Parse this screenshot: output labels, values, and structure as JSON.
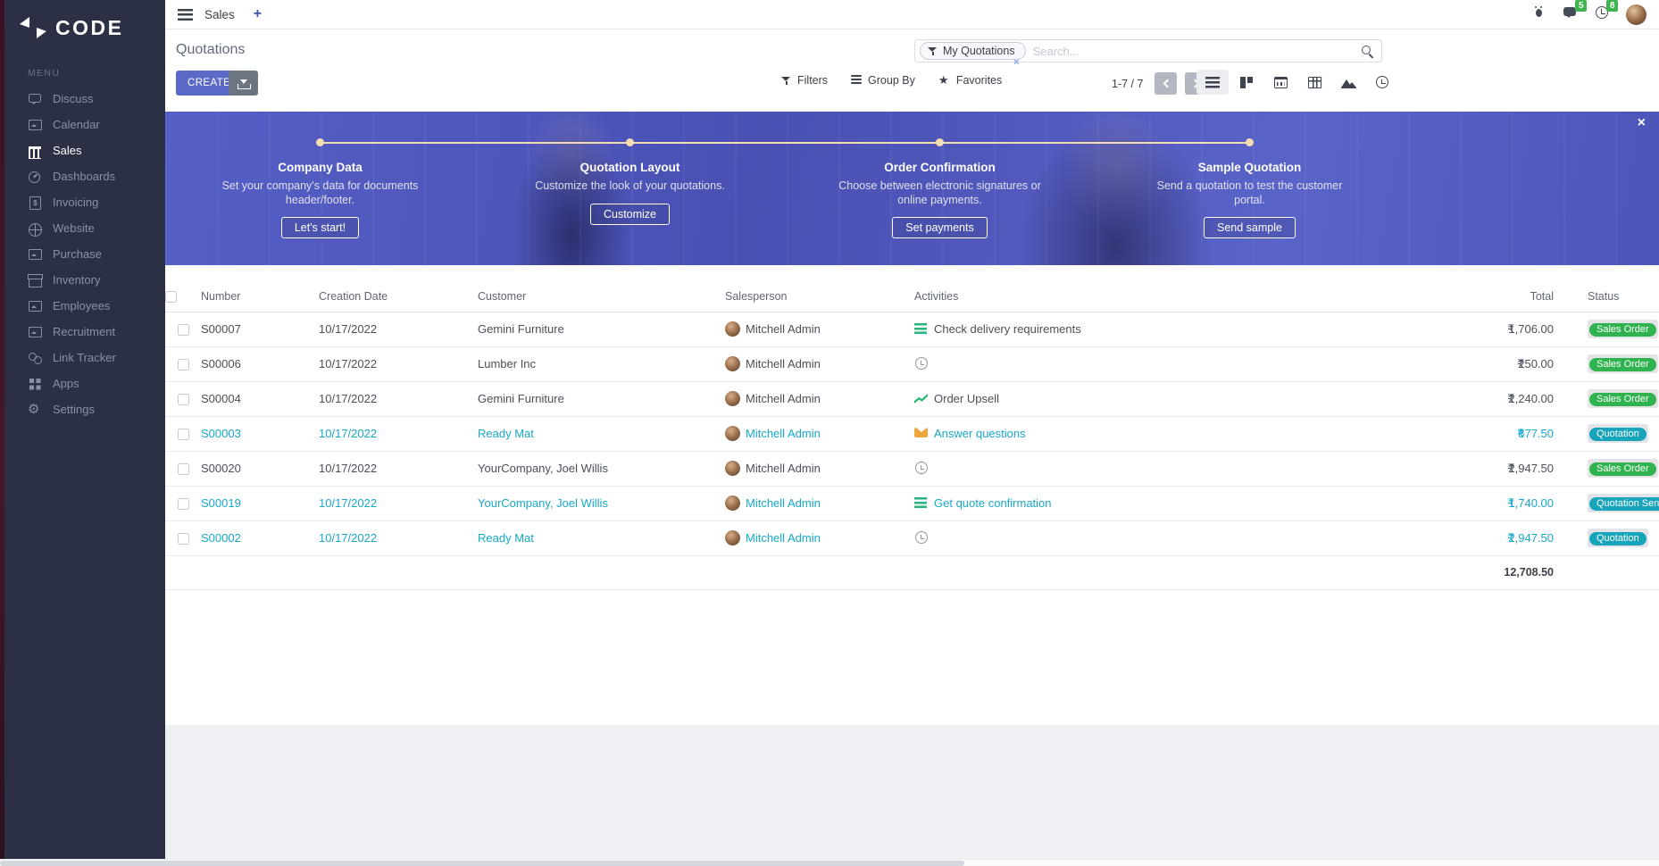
{
  "colors": {
    "accent": "#5b69c7",
    "sidebar_bg": "#2b3044",
    "status_green": "#2eb34f",
    "status_teal": "#18a4ba",
    "row_highlight": "#17a8c9",
    "banner_overlay": "#4d56b8",
    "timeline": "#f4ddb0",
    "notification_badge_green": "#3db54e"
  },
  "brand": {
    "logo_text": "CODE",
    "logo_icon": "code-arrows-icon"
  },
  "topbar": {
    "app_tab": "Sales",
    "new_tab_label": "+",
    "messages_badge": "5",
    "activities_badge": "8"
  },
  "sidebar": {
    "menu_label": "MENU",
    "items": [
      {
        "label": "Discuss",
        "icon": "chat-icon",
        "active": false
      },
      {
        "label": "Calendar",
        "icon": "image-icon",
        "active": false
      },
      {
        "label": "Sales",
        "icon": "shop-icon",
        "active": true
      },
      {
        "label": "Dashboards",
        "icon": "gauge-icon",
        "active": false
      },
      {
        "label": "Invoicing",
        "icon": "invoice-icon",
        "active": false
      },
      {
        "label": "Website",
        "icon": "globe-icon",
        "active": false
      },
      {
        "label": "Purchase",
        "icon": "image-icon",
        "active": false
      },
      {
        "label": "Inventory",
        "icon": "box-icon",
        "active": false
      },
      {
        "label": "Employees",
        "icon": "image-icon",
        "active": false
      },
      {
        "label": "Recruitment",
        "icon": "image-icon",
        "active": false
      },
      {
        "label": "Link Tracker",
        "icon": "link-icon",
        "active": false
      },
      {
        "label": "Apps",
        "icon": "apps-icon",
        "active": false
      },
      {
        "label": "Settings",
        "icon": "gear-icon",
        "active": false
      }
    ]
  },
  "control_panel": {
    "title": "Quotations",
    "facet_label": "My Quotations",
    "facet_remove": "×",
    "search_placeholder": "Search...",
    "create_label": "CREATE",
    "filters_label": "Filters",
    "group_by_label": "Group By",
    "favorites_label": "Favorites",
    "pager_text": "1-7 / 7"
  },
  "banner": {
    "close_label": "×",
    "steps": [
      {
        "title": "Company Data",
        "description": "Set your company's data for documents header/footer.",
        "button": "Let's start!"
      },
      {
        "title": "Quotation Layout",
        "description": "Customize the look of your quotations.",
        "button": "Customize"
      },
      {
        "title": "Order Confirmation",
        "description": "Choose between electronic signatures or online payments.",
        "button": "Set payments"
      },
      {
        "title": "Sample Quotation",
        "description": "Send a quotation to test the customer portal.",
        "button": "Send sample"
      }
    ]
  },
  "table": {
    "headers": [
      "Number",
      "Creation Date",
      "Customer",
      "Salesperson",
      "Activities",
      "Total",
      "Status"
    ],
    "currency_symbol": "₹",
    "rows": [
      {
        "number": "S00007",
        "date": "10/17/2022",
        "customer": "Gemini Furniture",
        "salesperson": "Mitchell Admin",
        "activity_icon": "list-icon",
        "activity_label": "Check delivery requirements",
        "total": "1,706.00",
        "status": "Sales Order",
        "status_color": "green",
        "highlighted": false
      },
      {
        "number": "S00006",
        "date": "10/17/2022",
        "customer": "Lumber Inc",
        "salesperson": "Mitchell Admin",
        "activity_icon": "clock-icon",
        "activity_label": "",
        "total": "250.00",
        "status": "Sales Order",
        "status_color": "green",
        "highlighted": false
      },
      {
        "number": "S00004",
        "date": "10/17/2022",
        "customer": "Gemini Furniture",
        "salesperson": "Mitchell Admin",
        "activity_icon": "chart-icon",
        "activity_label": "Order Upsell",
        "total": "2,240.00",
        "status": "Sales Order",
        "status_color": "green",
        "highlighted": false
      },
      {
        "number": "S00003",
        "date": "10/17/2022",
        "customer": "Ready Mat",
        "salesperson": "Mitchell Admin",
        "activity_icon": "mail-icon",
        "activity_label": "Answer questions",
        "total": "877.50",
        "status": "Quotation",
        "status_color": "teal",
        "highlighted": true
      },
      {
        "number": "S00020",
        "date": "10/17/2022",
        "customer": "YourCompany, Joel Willis",
        "salesperson": "Mitchell Admin",
        "activity_icon": "clock-icon",
        "activity_label": "",
        "total": "2,947.50",
        "status": "Sales Order",
        "status_color": "green",
        "highlighted": false
      },
      {
        "number": "S00019",
        "date": "10/17/2022",
        "customer": "YourCompany, Joel Willis",
        "salesperson": "Mitchell Admin",
        "activity_icon": "list-icon",
        "activity_label": "Get quote confirmation",
        "total": "1,740.00",
        "status": "Quotation Sent",
        "status_color": "teal",
        "highlighted": true
      },
      {
        "number": "S00002",
        "date": "10/17/2022",
        "customer": "Ready Mat",
        "salesperson": "Mitchell Admin",
        "activity_icon": "clock-icon",
        "activity_label": "",
        "total": "2,947.50",
        "status": "Quotation",
        "status_color": "teal",
        "highlighted": true
      }
    ],
    "footer_total": "12,708.50"
  }
}
